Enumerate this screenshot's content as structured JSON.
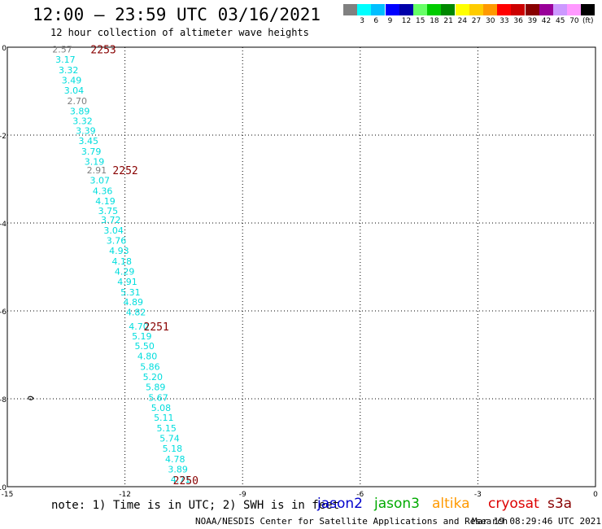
{
  "title": "12:00 — 23:59 UTC 03/16/2021",
  "subtitle": "12 hour collection of altimeter wave heights",
  "note": "note: 1) Time is in UTC; 2) SWH is in feet",
  "credit": "NOAA/NESDIS Center for Satellite Applications and Research",
  "credit_time": "Mar 19 08:29:46 UTC 2021",
  "satellites": [
    {
      "label": "jason2",
      "color": "#0000cc"
    },
    {
      "label": "jason3",
      "color": "#00aa00"
    },
    {
      "label": "altika",
      "color": "#ff9900"
    },
    {
      "label": "cryosat",
      "color": "#dd0000"
    },
    {
      "label": "s3a",
      "color": "#880000"
    }
  ],
  "legend": {
    "unit": "(ft)",
    "bins": [
      {
        "label": "",
        "color": "#808080"
      },
      {
        "label": "3",
        "color": "#00ffff"
      },
      {
        "label": "6",
        "color": "#00bfff"
      },
      {
        "label": "9",
        "color": "#0000ff"
      },
      {
        "label": "12",
        "color": "#0000aa"
      },
      {
        "label": "15",
        "color": "#66ff66"
      },
      {
        "label": "18",
        "color": "#00cc00"
      },
      {
        "label": "21",
        "color": "#008800"
      },
      {
        "label": "24",
        "color": "#ffff00"
      },
      {
        "label": "27",
        "color": "#ffcc00"
      },
      {
        "label": "30",
        "color": "#ff9900"
      },
      {
        "label": "33",
        "color": "#ff0000"
      },
      {
        "label": "36",
        "color": "#cc0000"
      },
      {
        "label": "39",
        "color": "#880000"
      },
      {
        "label": "42",
        "color": "#990099"
      },
      {
        "label": "45",
        "color": "#cc99ff"
      },
      {
        "label": "70",
        "color": "#ff99ff"
      },
      {
        "label": "",
        "color": "#000000"
      }
    ]
  },
  "map": {
    "lon_range": [
      -15,
      0
    ],
    "lat_range": [
      -10,
      0
    ],
    "x_ticks": [
      "-15",
      "-12",
      "-9",
      "-6",
      "-3",
      "0"
    ],
    "x_tick_values": [
      -15,
      -12,
      -9,
      -6,
      -3,
      0
    ],
    "y_ticks": [
      "0",
      "-2",
      "-4",
      "-6",
      "-8",
      "-10"
    ],
    "y_tick_values": [
      0,
      -2,
      -4,
      -6,
      -8,
      -10
    ],
    "grid": true
  },
  "swh_color_low": "#808080",
  "swh_color_default": "#00dddd",
  "pass_color": "#880000",
  "passes": [
    {
      "label": "2253",
      "lon": -12.55,
      "lat": -0.05
    },
    {
      "label": "2252",
      "lon": -11.99,
      "lat": -2.8
    },
    {
      "label": "2251",
      "lon": -11.2,
      "lat": -6.35
    },
    {
      "label": "2250",
      "lon": -10.45,
      "lat": -9.85
    }
  ],
  "observations": [
    {
      "swh": "2.57",
      "lon": -13.6,
      "lat": -0.05,
      "low": true
    },
    {
      "swh": "3.17",
      "lon": -13.52,
      "lat": -0.28
    },
    {
      "swh": "3.32",
      "lon": -13.44,
      "lat": -0.52
    },
    {
      "swh": "3.49",
      "lon": -13.36,
      "lat": -0.75
    },
    {
      "swh": "3.04",
      "lon": -13.3,
      "lat": -0.98
    },
    {
      "swh": "2.70",
      "lon": -13.22,
      "lat": -1.22,
      "low": true
    },
    {
      "swh": "3.89",
      "lon": -13.15,
      "lat": -1.45
    },
    {
      "swh": "3.32",
      "lon": -13.08,
      "lat": -1.68
    },
    {
      "swh": "3.39",
      "lon": -13.0,
      "lat": -1.9
    },
    {
      "swh": "3.45",
      "lon": -12.93,
      "lat": -2.13
    },
    {
      "swh": "3.79",
      "lon": -12.86,
      "lat": -2.37
    },
    {
      "swh": "3.19",
      "lon": -12.78,
      "lat": -2.6
    },
    {
      "swh": "2.91",
      "lon": -12.72,
      "lat": -2.8,
      "low": true
    },
    {
      "swh": "3.07",
      "lon": -12.64,
      "lat": -3.03
    },
    {
      "swh": "4.36",
      "lon": -12.57,
      "lat": -3.27
    },
    {
      "swh": "4.19",
      "lon": -12.5,
      "lat": -3.5
    },
    {
      "swh": "3.75",
      "lon": -12.43,
      "lat": -3.72
    },
    {
      "swh": "3.72",
      "lon": -12.36,
      "lat": -3.93
    },
    {
      "swh": "3.04",
      "lon": -12.29,
      "lat": -4.17
    },
    {
      "swh": "3.76",
      "lon": -12.22,
      "lat": -4.4
    },
    {
      "swh": "4.93",
      "lon": -12.15,
      "lat": -4.63
    },
    {
      "swh": "4.18",
      "lon": -12.08,
      "lat": -4.87
    },
    {
      "swh": "4.29",
      "lon": -12.01,
      "lat": -5.1
    },
    {
      "swh": "4.91",
      "lon": -11.94,
      "lat": -5.33
    },
    {
      "swh": "5.31",
      "lon": -11.86,
      "lat": -5.57
    },
    {
      "swh": "4.89",
      "lon": -11.79,
      "lat": -5.8
    },
    {
      "swh": "4.82",
      "lon": -11.72,
      "lat": -6.03
    },
    {
      "swh": "4.70",
      "lon": -11.65,
      "lat": -6.35
    },
    {
      "swh": "5.19",
      "lon": -11.57,
      "lat": -6.57
    },
    {
      "swh": "5.50",
      "lon": -11.5,
      "lat": -6.8
    },
    {
      "swh": "4.80",
      "lon": -11.43,
      "lat": -7.03
    },
    {
      "swh": "5.86",
      "lon": -11.36,
      "lat": -7.27
    },
    {
      "swh": "5.20",
      "lon": -11.29,
      "lat": -7.5
    },
    {
      "swh": "5.89",
      "lon": -11.22,
      "lat": -7.73
    },
    {
      "swh": "5.67",
      "lon": -11.15,
      "lat": -7.97
    },
    {
      "swh": "5.08",
      "lon": -11.08,
      "lat": -8.2
    },
    {
      "swh": "5.11",
      "lon": -11.01,
      "lat": -8.43
    },
    {
      "swh": "5.15",
      "lon": -10.94,
      "lat": -8.67
    },
    {
      "swh": "5.74",
      "lon": -10.86,
      "lat": -8.9
    },
    {
      "swh": "5.18",
      "lon": -10.79,
      "lat": -9.13
    },
    {
      "swh": "4.78",
      "lon": -10.72,
      "lat": -9.37
    },
    {
      "swh": "3.89",
      "lon": -10.65,
      "lat": -9.6
    },
    {
      "swh": "4.71",
      "lon": -10.58,
      "lat": -9.83
    }
  ]
}
